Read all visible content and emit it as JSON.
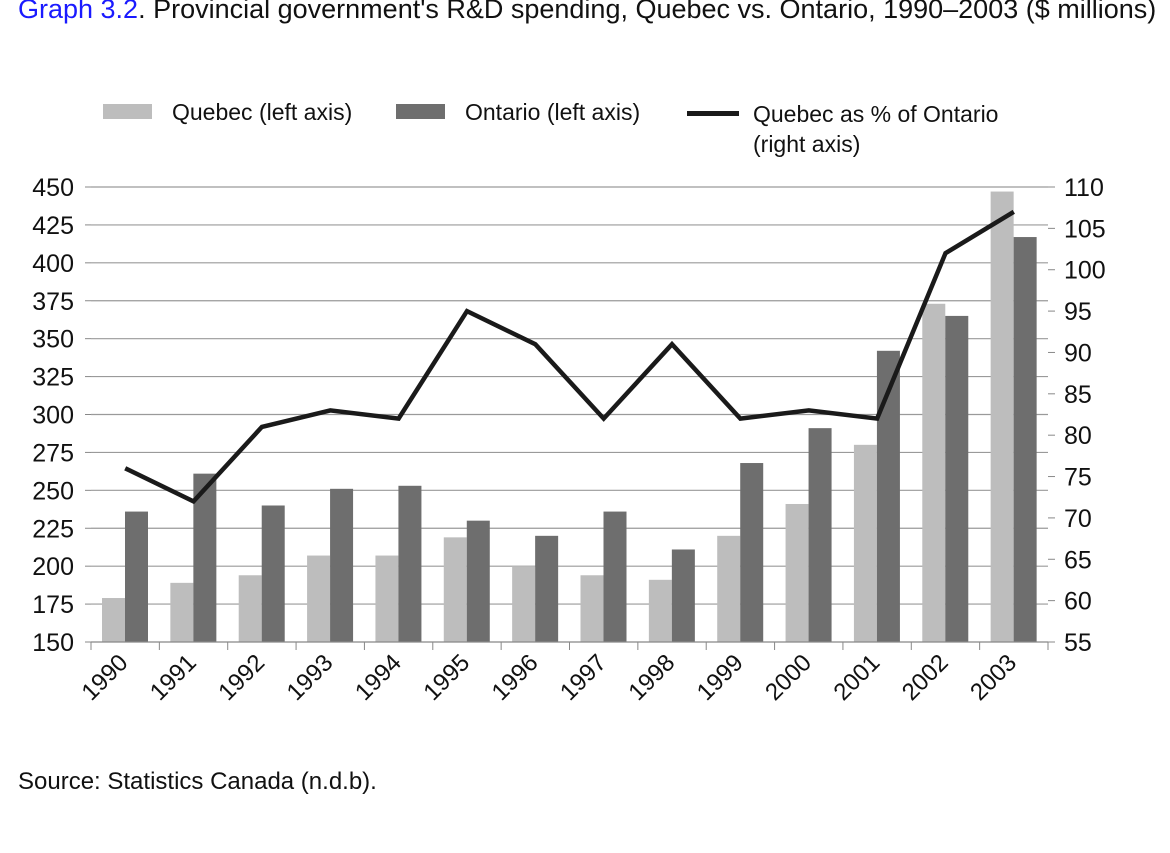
{
  "title": {
    "label": "Graph 3.2",
    "text": ". Provincial government's R&D spending, Quebec vs. Ontario, 1990–2003 ($ millions)"
  },
  "colors": {
    "quebec": "#bdbdbd",
    "ontario": "#6e6e6e",
    "line": "#1a1a1a",
    "grid": "#9a9a9a",
    "title_link": "#1a1aff"
  },
  "source": "Source: Statistics Canada (n.d.b).",
  "chart_data": {
    "type": "bar",
    "title": "Provincial government's R&D spending, Quebec vs. Ontario, 1990–2003 ($ millions)",
    "categories": [
      "1990",
      "1991",
      "1992",
      "1993",
      "1994",
      "1995",
      "1996",
      "1997",
      "1998",
      "1999",
      "2000",
      "2001",
      "2002",
      "2003"
    ],
    "series": [
      {
        "name": "Quebec (left axis)",
        "type": "bar",
        "axis": "left",
        "values": [
          179,
          189,
          194,
          207,
          207,
          219,
          200,
          194,
          191,
          220,
          241,
          280,
          373,
          447
        ]
      },
      {
        "name": "Ontario (left axis)",
        "type": "bar",
        "axis": "left",
        "values": [
          236,
          261,
          240,
          251,
          253,
          230,
          220,
          236,
          211,
          268,
          291,
          342,
          365,
          417
        ]
      },
      {
        "name": "Quebec as % of Ontario\n(right axis)",
        "legend_lines": [
          "Quebec as % of Ontario",
          "(right axis)"
        ],
        "type": "line",
        "axis": "right",
        "values": [
          76,
          72,
          81,
          83,
          82,
          95,
          91,
          82,
          91,
          82,
          83,
          82,
          102,
          107
        ]
      }
    ],
    "y_left": {
      "min": 150,
      "max": 450,
      "step": 25,
      "ticks": [
        "450",
        "425",
        "400",
        "375",
        "350",
        "325",
        "300",
        "275",
        "250",
        "225",
        "200",
        "175",
        "150"
      ]
    },
    "y_right": {
      "min": 55,
      "max": 110,
      "step": 5,
      "ticks": [
        "110",
        "105",
        "100",
        "95",
        "90",
        "85",
        "80",
        "75",
        "70",
        "65",
        "60",
        "55"
      ]
    },
    "grid": true,
    "legend_position": "top"
  }
}
